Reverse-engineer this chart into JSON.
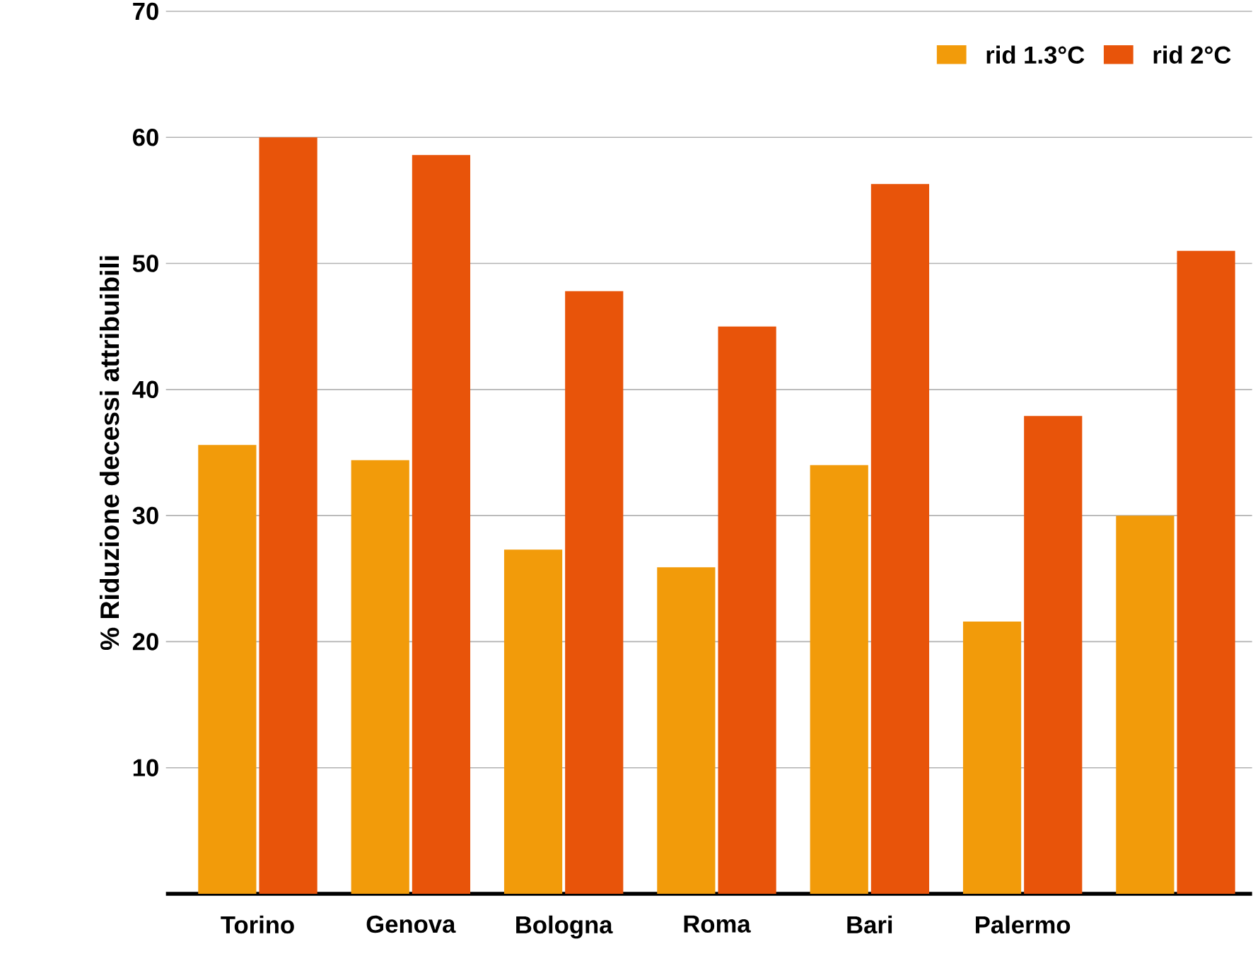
{
  "chart_data": {
    "type": "bar",
    "ylabel": "% Riduzione decessi attribuibili",
    "categories": [
      "Torino",
      "Genova",
      "Bologna",
      "Roma",
      "Bari",
      "Palermo",
      null
    ],
    "series": [
      {
        "name": "rid 1.3°C",
        "color": "#f29b0a",
        "values": [
          35.6,
          34.4,
          27.3,
          25.9,
          34.0,
          21.6,
          30.0
        ]
      },
      {
        "name": "rid 2°C",
        "color": "#e8540a",
        "values": [
          60.0,
          58.6,
          47.8,
          45.0,
          56.3,
          37.9,
          51.0
        ]
      }
    ],
    "ylim": [
      0,
      70
    ],
    "yticks": [
      10,
      20,
      30,
      40,
      50,
      60,
      70
    ],
    "grid": "y",
    "legend": "top right"
  }
}
